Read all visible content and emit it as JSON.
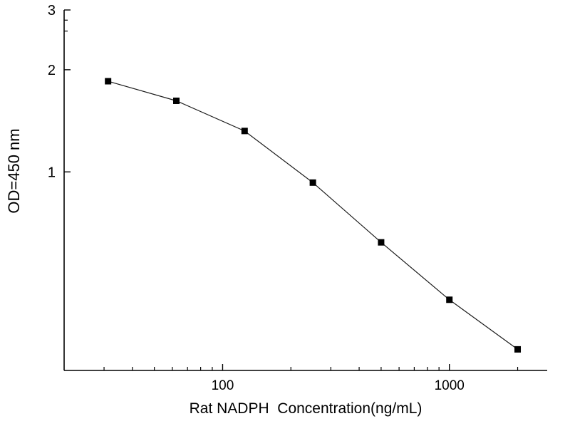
{
  "figure": {
    "background": "#ffffff"
  },
  "chart_data": {
    "type": "scatter",
    "subtype": "scatter-with-line",
    "title": "",
    "xlabel": "Rat NADPH  Concentration(ng/mL)",
    "ylabel": "OD=450 nm",
    "xscale": "log",
    "yscale": "log",
    "xlim": [
      20,
      2700
    ],
    "ylim": [
      0.26,
      3
    ],
    "x": [
      31.25,
      62.5,
      125,
      250,
      500,
      1000,
      2000
    ],
    "y": [
      1.85,
      1.62,
      1.32,
      0.93,
      0.62,
      0.42,
      0.3
    ],
    "x_major_ticks": [
      100,
      1000
    ],
    "x_major_tick_labels": [
      "100",
      "1000"
    ],
    "x_minor_ticks": [
      30,
      40,
      50,
      60,
      70,
      80,
      90,
      200,
      300,
      400,
      500,
      600,
      700,
      800,
      900,
      2000
    ],
    "y_major_ticks": [
      1,
      2,
      3
    ],
    "y_major_tick_labels": [
      "1",
      "2",
      "3"
    ],
    "y_minor_ticks": [
      2.6,
      2.8
    ],
    "marker": "filled-square",
    "marker_size": 9,
    "marker_color": "#000000",
    "line_color": "#1a1a1a",
    "axis_color": "#000000",
    "text_color": "#000000",
    "grid": false,
    "legend": null
  }
}
